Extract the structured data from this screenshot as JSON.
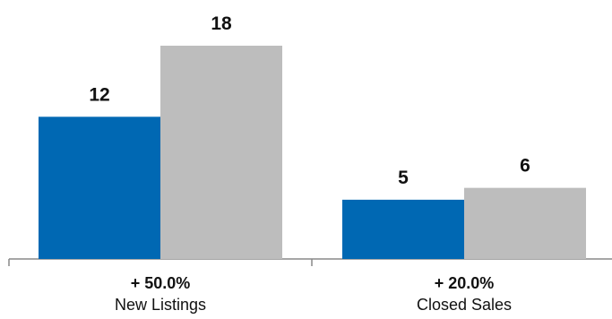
{
  "chart_data": {
    "type": "bar",
    "categories": [
      "New Listings",
      "Closed Sales"
    ],
    "category_changes": [
      "+ 50.0%",
      "+ 20.0%"
    ],
    "series": [
      {
        "values": [
          12,
          5
        ],
        "color": "#0068b3"
      },
      {
        "values": [
          18,
          6
        ],
        "color": "#bdbdbd"
      }
    ],
    "ylim": [
      0,
      18
    ],
    "grid": false,
    "legend": "none",
    "axis_color": "#888888"
  }
}
